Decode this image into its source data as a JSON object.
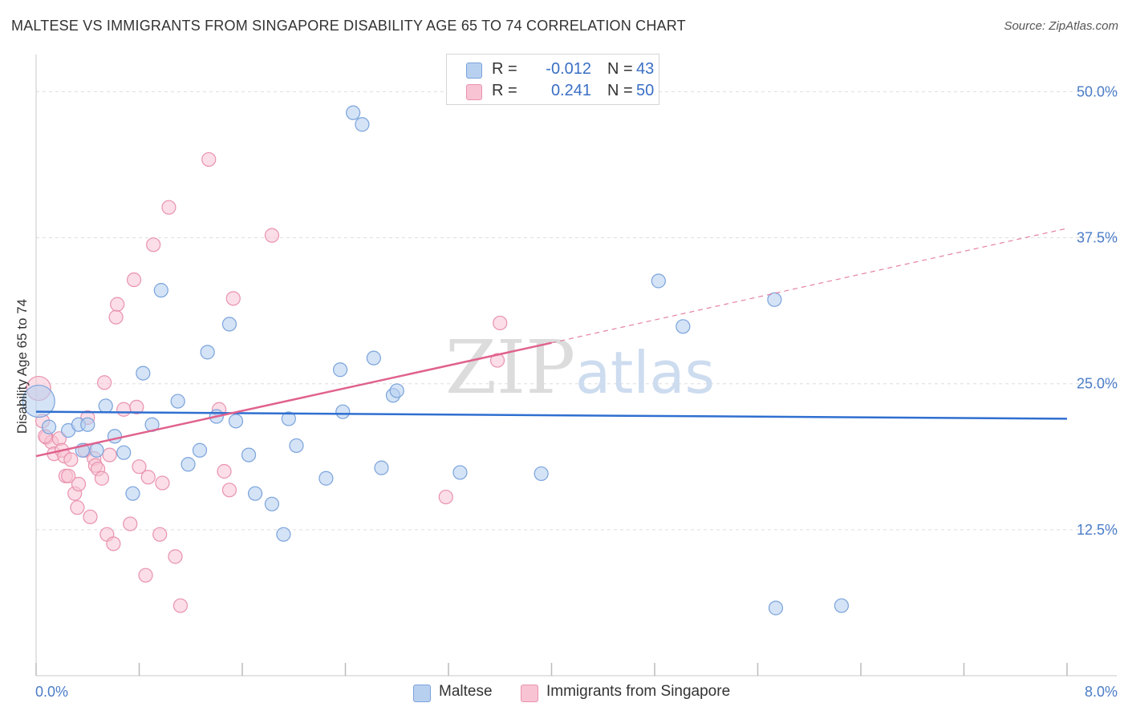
{
  "title": "MALTESE VS IMMIGRANTS FROM SINGAPORE DISABILITY AGE 65 TO 74 CORRELATION CHART",
  "source": "Source: ZipAtlas.com",
  "watermark": {
    "zip": "ZIP",
    "atlas": "atlas"
  },
  "legend_top": {
    "rows": [
      {
        "r_label": "R =",
        "r_value": "-0.012",
        "n_label": "N =",
        "n_value": "43"
      },
      {
        "r_label": "R =",
        "r_value": "0.241",
        "n_label": "N =",
        "n_value": "50"
      }
    ]
  },
  "colors": {
    "blue_fill": "#b8d0f0",
    "blue_stroke": "#7aa3dc",
    "blue_line": "#2f6fd0",
    "pink_fill": "#f8c3d3",
    "pink_stroke": "#e992ae",
    "pink_line": "#e0628e",
    "tick_text": "#4a7cc7",
    "grid": "#dddddd"
  },
  "chart_data": {
    "type": "scatter",
    "title": "MALTESE VS IMMIGRANTS FROM SINGAPORE DISABILITY AGE 65 TO 74 CORRELATION CHART",
    "xlabel": "",
    "ylabel": "Disability Age 65 to 74",
    "xlim": [
      0,
      8
    ],
    "ylim": [
      0,
      52.5
    ],
    "x_tick_labels": [
      "0.0%",
      "8.0%"
    ],
    "y_ticks": [
      12.5,
      25.0,
      37.5,
      50.0
    ],
    "y_tick_labels": [
      "12.5%",
      "25.0%",
      "37.5%",
      "50.0%"
    ],
    "grid": "horizontal dashed",
    "legend_position": "top-center",
    "series": [
      {
        "name": "Maltese",
        "color": "#b8d0f0",
        "r": -0.012,
        "n": 43,
        "trend": {
          "x": [
            0,
            8
          ],
          "y": [
            22.6,
            22.0
          ]
        },
        "points": [
          [
            0.02,
            23.5
          ],
          [
            0.1,
            21.3
          ],
          [
            0.25,
            21.0
          ],
          [
            0.33,
            21.5
          ],
          [
            0.4,
            21.5
          ],
          [
            0.36,
            19.3
          ],
          [
            0.47,
            19.3
          ],
          [
            0.54,
            23.1
          ],
          [
            0.61,
            20.5
          ],
          [
            0.68,
            19.1
          ],
          [
            0.75,
            15.6
          ],
          [
            0.83,
            25.9
          ],
          [
            0.9,
            21.5
          ],
          [
            0.97,
            33.0
          ],
          [
            1.1,
            23.5
          ],
          [
            1.18,
            18.1
          ],
          [
            1.27,
            19.3
          ],
          [
            1.33,
            27.7
          ],
          [
            1.4,
            22.2
          ],
          [
            1.5,
            30.1
          ],
          [
            1.55,
            21.8
          ],
          [
            1.65,
            18.9
          ],
          [
            1.7,
            15.6
          ],
          [
            1.83,
            14.7
          ],
          [
            1.92,
            12.1
          ],
          [
            1.96,
            22.0
          ],
          [
            2.02,
            19.7
          ],
          [
            2.25,
            16.9
          ],
          [
            2.36,
            26.2
          ],
          [
            2.38,
            22.6
          ],
          [
            2.46,
            48.2
          ],
          [
            2.53,
            47.2
          ],
          [
            2.62,
            27.2
          ],
          [
            2.68,
            17.8
          ],
          [
            2.77,
            24.0
          ],
          [
            2.8,
            24.4
          ],
          [
            3.29,
            17.4
          ],
          [
            3.92,
            17.3
          ],
          [
            4.83,
            33.8
          ],
          [
            5.02,
            29.9
          ],
          [
            5.73,
            32.2
          ],
          [
            5.74,
            5.8
          ],
          [
            6.25,
            6.0
          ]
        ]
      },
      {
        "name": "Immigrants from Singapore",
        "color": "#f8c3d3",
        "r": 0.241,
        "n": 50,
        "trend": {
          "x": [
            0,
            4.0
          ],
          "y": [
            18.8,
            28.5
          ]
        },
        "trend_extension": {
          "x": [
            4.0,
            8.0
          ],
          "y": [
            28.5,
            38.3
          ]
        },
        "points": [
          [
            0.02,
            24.6
          ],
          [
            0.05,
            21.8
          ],
          [
            0.08,
            20.4
          ],
          [
            0.12,
            20.0
          ],
          [
            0.14,
            19.0
          ],
          [
            0.18,
            20.3
          ],
          [
            0.2,
            19.3
          ],
          [
            0.22,
            18.8
          ],
          [
            0.23,
            17.1
          ],
          [
            0.25,
            17.1
          ],
          [
            0.27,
            18.5
          ],
          [
            0.3,
            15.6
          ],
          [
            0.32,
            14.4
          ],
          [
            0.33,
            16.4
          ],
          [
            0.38,
            19.3
          ],
          [
            0.4,
            22.1
          ],
          [
            0.42,
            13.6
          ],
          [
            0.45,
            18.6
          ],
          [
            0.46,
            18.0
          ],
          [
            0.48,
            17.7
          ],
          [
            0.51,
            16.9
          ],
          [
            0.53,
            25.1
          ],
          [
            0.55,
            12.1
          ],
          [
            0.57,
            18.9
          ],
          [
            0.6,
            11.3
          ],
          [
            0.62,
            30.7
          ],
          [
            0.63,
            31.8
          ],
          [
            0.68,
            22.8
          ],
          [
            0.73,
            13.0
          ],
          [
            0.76,
            33.9
          ],
          [
            0.78,
            23.0
          ],
          [
            0.8,
            17.9
          ],
          [
            0.85,
            8.6
          ],
          [
            0.87,
            17.0
          ],
          [
            0.91,
            36.9
          ],
          [
            0.96,
            12.1
          ],
          [
            0.98,
            16.5
          ],
          [
            1.03,
            40.1
          ],
          [
            1.08,
            10.2
          ],
          [
            1.12,
            6.0
          ],
          [
            1.34,
            44.2
          ],
          [
            1.42,
            22.8
          ],
          [
            1.5,
            15.9
          ],
          [
            1.46,
            17.5
          ],
          [
            1.53,
            32.3
          ],
          [
            1.83,
            37.7
          ],
          [
            3.18,
            15.3
          ],
          [
            3.58,
            27.0
          ],
          [
            3.6,
            30.2
          ],
          [
            0.07,
            20.5
          ]
        ]
      }
    ]
  },
  "bottom_legend": {
    "items": [
      "Maltese",
      "Immigrants from Singapore"
    ]
  }
}
